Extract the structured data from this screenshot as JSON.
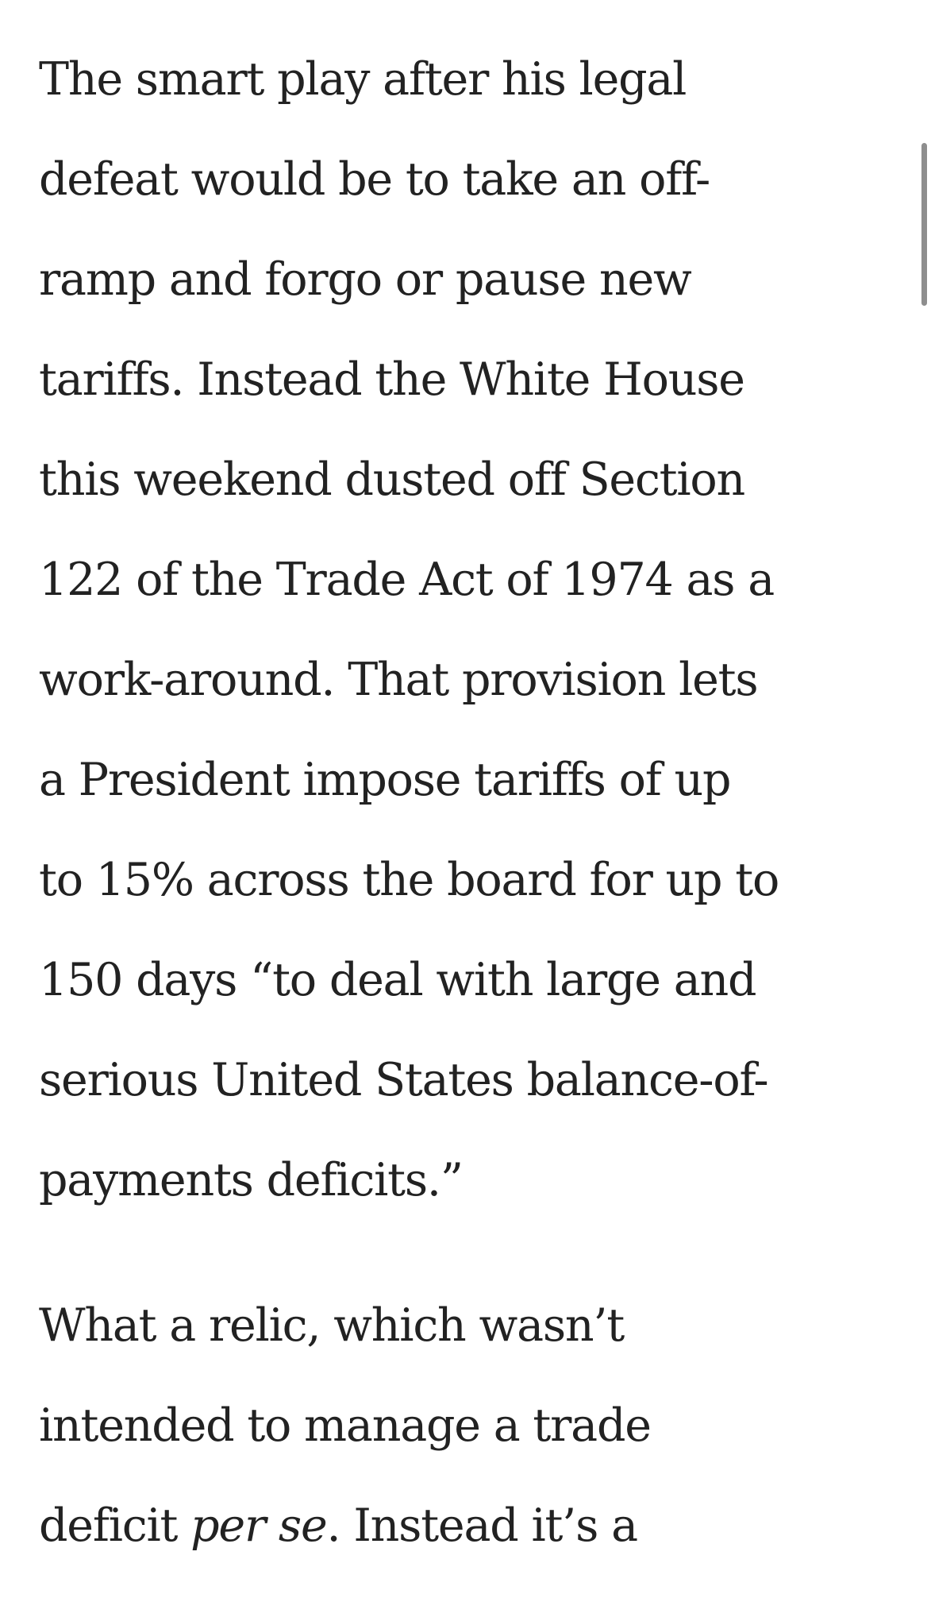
{
  "article": {
    "paragraphs": [
      {
        "lines": [
          [
            "The smart play after his legal"
          ],
          [
            "defeat would be to take an off-"
          ],
          [
            "ramp and forgo or pause new"
          ],
          [
            "tariffs. Instead the White House"
          ],
          [
            "this weekend dusted off Section"
          ],
          [
            "122 of the Trade Act of 1974 as a"
          ],
          [
            "work-around. That provision lets"
          ],
          [
            "a President impose tariffs of up"
          ],
          [
            "to 15% across the board for up to"
          ],
          [
            "150 days “to deal with large and"
          ],
          [
            "serious United States balance-of-"
          ],
          [
            "payments deficits.”"
          ]
        ]
      },
      {
        "lines": [
          [
            "What a relic, which wasn’t"
          ],
          [
            "intended to manage a trade"
          ],
          [
            "deficit ",
            "per se",
            ". Instead it’s a"
          ]
        ]
      }
    ]
  }
}
